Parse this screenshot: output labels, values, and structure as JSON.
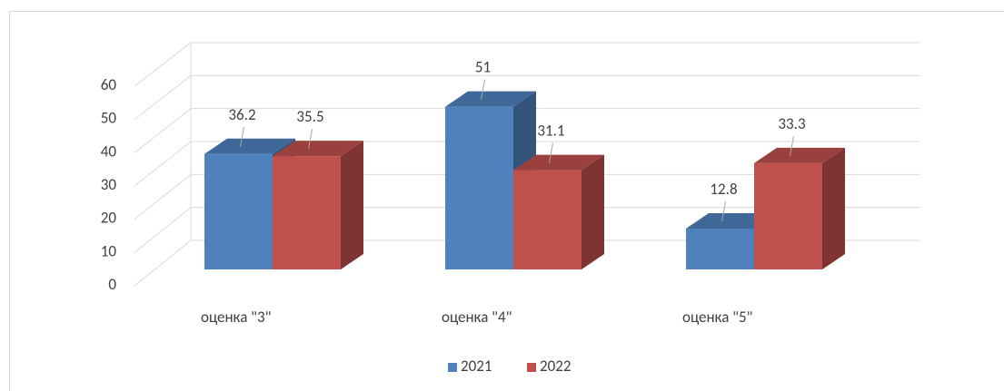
{
  "chart_data": {
    "type": "bar3d",
    "categories": [
      "оценка \"3\"",
      "оценка \"4\"",
      "оценка \"5\""
    ],
    "series": [
      {
        "name": "2021",
        "color": "#4f81bd",
        "values": [
          36.2,
          51,
          12.8
        ]
      },
      {
        "name": "2022",
        "color": "#c0504d",
        "values": [
          35.5,
          31.1,
          33.3
        ]
      }
    ],
    "ylim": [
      0,
      60
    ],
    "yticks": [
      0,
      10,
      20,
      30,
      40,
      50,
      60
    ],
    "grid": true,
    "legend": "bottom"
  }
}
